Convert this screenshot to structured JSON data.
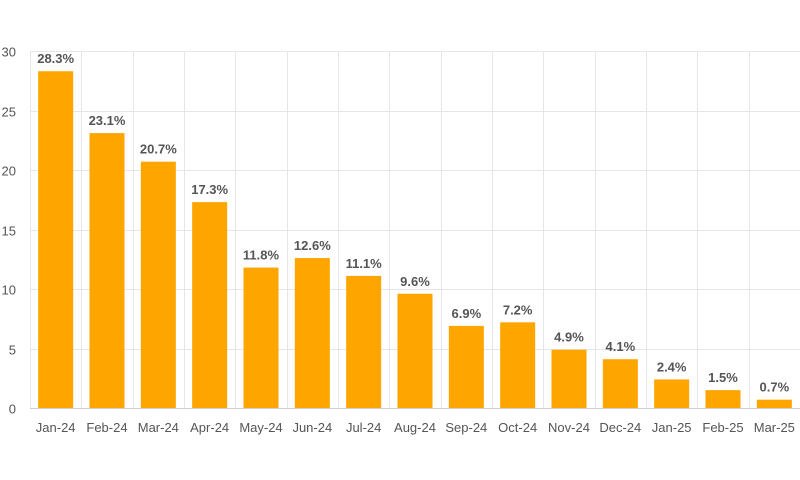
{
  "chart_data": {
    "type": "bar",
    "categories": [
      "Jan-24",
      "Feb-24",
      "Mar-24",
      "Apr-24",
      "May-24",
      "Jun-24",
      "Jul-24",
      "Aug-24",
      "Sep-24",
      "Oct-24",
      "Nov-24",
      "Dec-24",
      "Jan-25",
      "Feb-25",
      "Mar-25"
    ],
    "values": [
      28.3,
      23.1,
      20.7,
      17.3,
      11.8,
      12.6,
      11.1,
      9.6,
      6.9,
      7.2,
      4.9,
      4.1,
      2.4,
      1.5,
      0.7
    ],
    "data_labels": [
      "28.3%",
      "23.1%",
      "20.7%",
      "17.3%",
      "11.8%",
      "12.6%",
      "11.1%",
      "9.6%",
      "6.9%",
      "7.2%",
      "4.9%",
      "4.1%",
      "2.4%",
      "1.5%",
      "0.7%"
    ],
    "title": "",
    "xlabel": "",
    "ylabel": "",
    "ylim": [
      0,
      30
    ],
    "yticks": [
      "0",
      "5",
      "10",
      "15",
      "20",
      "25",
      "30"
    ],
    "grid": true,
    "legend": "none",
    "bar_color": "#FFA500",
    "grid_color": "#e6e6e6"
  }
}
